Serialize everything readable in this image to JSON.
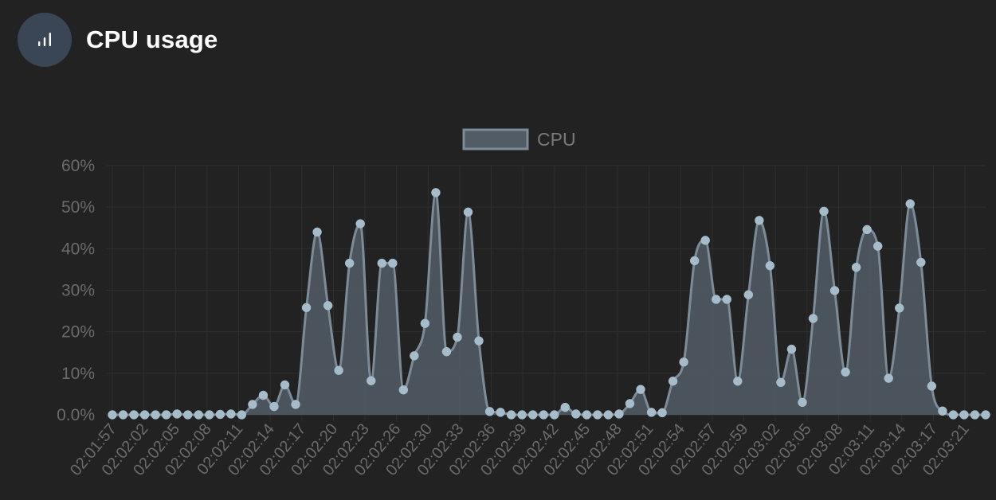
{
  "header": {
    "title": "CPU usage",
    "icon": "bar-chart-icon"
  },
  "chart_data": {
    "type": "area",
    "title": "",
    "xlabel": "",
    "ylabel": "",
    "ylim": [
      0,
      60
    ],
    "yticks": [
      "0.0%",
      "10%",
      "20%",
      "30%",
      "40%",
      "50%",
      "60%"
    ],
    "grid": true,
    "legend_position": "top-center",
    "colors": {
      "line": "#7d8b98",
      "fill": "#525c66",
      "point": "#a6bccb",
      "grid": "#2f2f2f",
      "axis_text": "#6b6b6b",
      "legend_text": "#7a7a7a"
    },
    "x_tick_labels": [
      "02:01:57",
      "02:02:02",
      "02:02:05",
      "02:02:08",
      "02:02:11",
      "02:02:14",
      "02:02:17",
      "02:02:20",
      "02:02:23",
      "02:02:26",
      "02:02:30",
      "02:02:33",
      "02:02:36",
      "02:02:39",
      "02:02:42",
      "02:02:45",
      "02:02:48",
      "02:02:51",
      "02:02:54",
      "02:02:57",
      "02:02:59",
      "02:03:02",
      "02:03:05",
      "02:03:08",
      "02:03:11",
      "02:03:14",
      "02:03:17",
      "02:03:21"
    ],
    "series": [
      {
        "name": "CPU",
        "values": [
          0,
          0,
          0,
          0,
          0,
          0,
          0.2,
          0,
          0,
          0,
          0.1,
          0.2,
          0,
          2.5,
          4.7,
          2,
          7.2,
          2.5,
          25.8,
          44,
          26.3,
          10.7,
          36.5,
          46,
          8.2,
          36.5,
          36.5,
          6,
          14.2,
          22,
          53.5,
          15.2,
          18.7,
          48.8,
          17.8,
          0.8,
          0.6,
          0,
          0,
          0,
          0,
          0,
          1.8,
          0.2,
          0,
          0,
          0,
          0.2,
          2.7,
          6.1,
          0.6,
          0.5,
          8.1,
          12.7,
          37.1,
          42,
          27.8,
          27.8,
          8.1,
          28.9,
          46.8,
          35.9,
          7.8,
          15.8,
          3,
          23.2,
          49,
          29.9,
          10.3,
          35.5,
          44.6,
          40.6,
          8.8,
          25.7,
          50.8,
          36.7,
          6.9,
          0.9,
          0,
          0,
          0,
          0
        ]
      }
    ]
  }
}
